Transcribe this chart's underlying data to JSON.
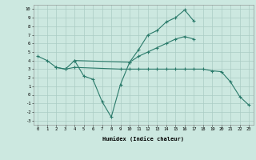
{
  "xlabel": "Humidex (Indice chaleur)",
  "bg_color": "#cce8e0",
  "grid_color": "#aaccc4",
  "line_color": "#2a7a6a",
  "xlim": [
    -0.5,
    23.5
  ],
  "ylim": [
    -3.5,
    10.5
  ],
  "xticks": [
    0,
    1,
    2,
    3,
    4,
    5,
    6,
    7,
    8,
    9,
    10,
    11,
    12,
    13,
    14,
    15,
    16,
    17,
    18,
    19,
    20,
    21,
    22,
    23
  ],
  "yticks": [
    -3,
    -2,
    -1,
    0,
    1,
    2,
    3,
    4,
    5,
    6,
    7,
    8,
    9,
    10
  ],
  "line1_x": [
    0,
    1,
    2,
    3,
    4,
    5,
    6,
    7,
    8,
    9,
    10,
    11,
    12,
    13,
    14,
    15,
    16,
    17
  ],
  "line1_y": [
    4.5,
    4.0,
    3.2,
    3.0,
    4.0,
    2.2,
    1.8,
    -0.8,
    -2.6,
    1.2,
    3.8,
    5.3,
    7.0,
    7.5,
    8.5,
    9.0,
    9.9,
    8.6
  ],
  "line2_x": [
    4,
    10,
    11,
    12,
    13,
    14,
    15,
    16,
    17,
    18
  ],
  "line2_y": [
    4.0,
    3.8,
    4.5,
    5.0,
    5.5,
    6.0,
    6.5,
    6.8,
    6.5,
    null
  ],
  "line2_x_actual": [
    4,
    10,
    11,
    12,
    13,
    14,
    15,
    16,
    17
  ],
  "line2_y_actual": [
    4.0,
    3.8,
    4.5,
    5.0,
    5.5,
    6.0,
    6.5,
    6.8,
    6.5
  ],
  "line3_x": [
    2,
    3,
    4,
    9,
    10,
    11,
    12,
    13,
    14,
    15,
    16,
    17,
    18,
    19,
    20,
    21,
    22,
    23
  ],
  "line3_y": [
    3.2,
    3.0,
    3.2,
    3.0,
    3.0,
    3.0,
    3.0,
    3.0,
    3.0,
    3.0,
    3.0,
    3.0,
    3.0,
    2.8,
    2.7,
    1.5,
    -0.2,
    -1.2
  ]
}
